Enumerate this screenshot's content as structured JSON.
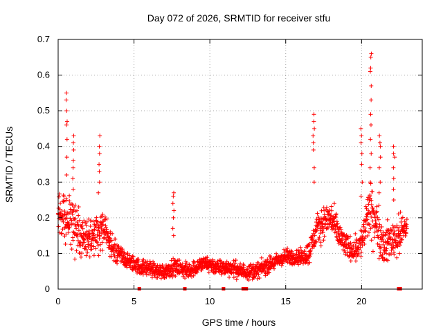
{
  "chart_data": {
    "type": "scatter",
    "title": "Day 072 of 2026, SRMTID for receiver stfu",
    "xlabel": "GPS time / hours",
    "ylabel": "SRMTID / TECUs",
    "xlim": [
      0,
      24
    ],
    "ylim": [
      0,
      0.7
    ],
    "x_ticks": [
      0,
      5,
      10,
      15,
      20
    ],
    "x_tick_labels": [
      "0",
      "5",
      "10",
      "15",
      "20"
    ],
    "y_ticks": [
      0,
      0.1,
      0.2,
      0.3,
      0.4,
      0.5,
      0.6,
      0.7
    ],
    "y_tick_labels": [
      "0",
      "0.1",
      "0.2",
      "0.3",
      "0.4",
      "0.5",
      "0.6",
      "0.7"
    ],
    "grid": true,
    "marker": "+",
    "color": "#ff0000",
    "series": [
      {
        "name": "SRMTID",
        "envelope_x": [
          0,
          0.5,
          1,
          1.5,
          2,
          2.5,
          3,
          3.5,
          4,
          4.5,
          5,
          5.5,
          6,
          6.5,
          7,
          7.5,
          8,
          8.5,
          9,
          9.5,
          10,
          10.5,
          11,
          11.5,
          12,
          12.5,
          13,
          13.5,
          14,
          14.5,
          15,
          15.5,
          16,
          16.5,
          17,
          17.5,
          18,
          18.5,
          19,
          19.5,
          20,
          20.5,
          21,
          21.5,
          22,
          22.5,
          23
        ],
        "envelope_median": [
          0.22,
          0.2,
          0.17,
          0.15,
          0.14,
          0.16,
          0.17,
          0.12,
          0.1,
          0.08,
          0.07,
          0.06,
          0.06,
          0.05,
          0.05,
          0.06,
          0.06,
          0.05,
          0.06,
          0.07,
          0.07,
          0.06,
          0.06,
          0.06,
          0.05,
          0.05,
          0.05,
          0.06,
          0.07,
          0.08,
          0.09,
          0.09,
          0.09,
          0.1,
          0.16,
          0.19,
          0.2,
          0.15,
          0.12,
          0.11,
          0.13,
          0.22,
          0.18,
          0.12,
          0.14,
          0.15,
          0.18
        ],
        "envelope_spread": [
          0.06,
          0.07,
          0.07,
          0.05,
          0.05,
          0.05,
          0.05,
          0.04,
          0.03,
          0.02,
          0.02,
          0.02,
          0.02,
          0.02,
          0.02,
          0.02,
          0.02,
          0.02,
          0.02,
          0.02,
          0.02,
          0.02,
          0.02,
          0.02,
          0.02,
          0.02,
          0.02,
          0.02,
          0.02,
          0.02,
          0.02,
          0.02,
          0.02,
          0.03,
          0.04,
          0.04,
          0.04,
          0.04,
          0.03,
          0.03,
          0.04,
          0.07,
          0.06,
          0.05,
          0.05,
          0.05,
          0.04
        ],
        "spikes": [
          {
            "x": 0.55,
            "y": [
              0.55,
              0.53,
              0.5,
              0.47,
              0.46,
              0.42,
              0.37,
              0.32
            ]
          },
          {
            "x": 1.0,
            "y": [
              0.43,
              0.41,
              0.39,
              0.36,
              0.34,
              0.31,
              0.28
            ]
          },
          {
            "x": 2.7,
            "y": [
              0.43,
              0.4,
              0.38,
              0.35,
              0.33,
              0.3,
              0.27
            ]
          },
          {
            "x": 7.6,
            "y": [
              0.27,
              0.26,
              0.24,
              0.22,
              0.2,
              0.17,
              0.15
            ]
          },
          {
            "x": 16.85,
            "y": [
              0.49,
              0.47,
              0.45,
              0.43,
              0.41,
              0.39,
              0.34,
              0.3
            ]
          },
          {
            "x": 20.0,
            "y": [
              0.45,
              0.43,
              0.41,
              0.38,
              0.35,
              0.3,
              0.26
            ]
          },
          {
            "x": 20.6,
            "y": [
              0.66,
              0.65,
              0.62,
              0.61,
              0.57,
              0.53,
              0.49,
              0.46,
              0.42,
              0.38,
              0.34,
              0.3
            ]
          },
          {
            "x": 21.2,
            "y": [
              0.43,
              0.41,
              0.4,
              0.37,
              0.34,
              0.3,
              0.27
            ]
          },
          {
            "x": 22.15,
            "y": [
              0.4,
              0.38,
              0.37,
              0.34,
              0.31,
              0.28,
              0.25
            ]
          }
        ]
      }
    ],
    "gap_markers_x": [
      5.35,
      8.35,
      10.9,
      12.2,
      12.4,
      22.45,
      22.55
    ]
  }
}
